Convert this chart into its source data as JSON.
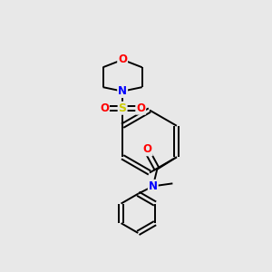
{
  "bg_color": "#e8e8e8",
  "atom_colors": {
    "C": "#000000",
    "N": "#0000ff",
    "O": "#ff0000",
    "S": "#cccc00"
  },
  "bond_color": "#000000",
  "figsize": [
    3.0,
    3.0
  ],
  "dpi": 100,
  "lw": 1.4,
  "fs": 8.5
}
